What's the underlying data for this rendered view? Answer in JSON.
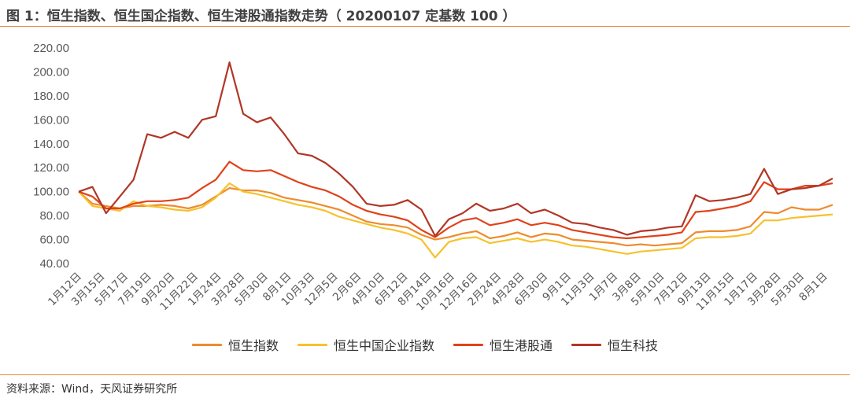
{
  "header": {
    "title": "图 1：恒生指数、恒生国企指数、恒生港股通指数走势（ 20200107 定基数 100 ）"
  },
  "footer": {
    "source": "资料来源：Wind，天风证券研究所"
  },
  "colors": {
    "rule": "#e58b3a",
    "hsi": "#ee8b2e",
    "hscei": "#f7c12c",
    "ggt": "#e0421a",
    "tech": "#b03726"
  },
  "chart_data": {
    "type": "line",
    "ylim": [
      40,
      220
    ],
    "yticks": [
      "220.00",
      "200.00",
      "180.00",
      "160.00",
      "140.00",
      "120.00",
      "100.00",
      "80.00",
      "60.00",
      "40.00"
    ],
    "ytick_values": [
      220,
      200,
      180,
      160,
      140,
      120,
      100,
      80,
      60,
      40
    ],
    "x_tick_labels": [
      "1月12日",
      "3月15日",
      "5月17日",
      "7月19日",
      "9月20日",
      "11月22日",
      "1月24日",
      "3月28日",
      "5月30日",
      "8月1日",
      "10月3日",
      "12月5日",
      "2月6日",
      "4月10日",
      "6月12日",
      "8月14日",
      "10月16日",
      "12月16日",
      "2月24日",
      "4月28日",
      "6月30日",
      "9月1日",
      "11月3日",
      "1月7日",
      "3月8日",
      "5月10日",
      "7月12日",
      "9月13日",
      "11月15日",
      "1月17日",
      "3月28日",
      "5月30日",
      "8月1日"
    ],
    "series": [
      {
        "name": "恒生指数",
        "color_key": "hsi",
        "values": [
          100,
          90,
          88,
          86,
          88,
          88,
          89,
          88,
          86,
          89,
          96,
          103,
          101,
          101,
          99,
          95,
          93,
          91,
          88,
          85,
          80,
          75,
          73,
          72,
          70,
          64,
          60,
          62,
          65,
          67,
          61,
          63,
          66,
          62,
          65,
          64,
          60,
          59,
          58,
          57,
          55,
          56,
          55,
          56,
          57,
          66,
          67,
          67,
          68,
          71,
          83,
          82,
          87,
          85,
          85,
          89
        ]
      },
      {
        "name": "恒生中国企业指数",
        "color_key": "hscei",
        "values": [
          100,
          88,
          86,
          84,
          92,
          88,
          87,
          85,
          84,
          87,
          95,
          107,
          100,
          98,
          95,
          92,
          89,
          87,
          84,
          79,
          76,
          73,
          70,
          68,
          65,
          60,
          45,
          58,
          61,
          62,
          57,
          59,
          61,
          58,
          60,
          58,
          55,
          54,
          52,
          50,
          48,
          50,
          51,
          52,
          53,
          61,
          62,
          62,
          63,
          65,
          76,
          76,
          78,
          79,
          80,
          81
        ]
      },
      {
        "name": "恒生港股通",
        "color_key": "ggt",
        "values": [
          100,
          96,
          86,
          86,
          90,
          92,
          92,
          93,
          95,
          103,
          110,
          125,
          118,
          117,
          118,
          113,
          108,
          104,
          101,
          96,
          89,
          84,
          81,
          79,
          76,
          68,
          62,
          70,
          76,
          78,
          72,
          74,
          77,
          72,
          74,
          72,
          68,
          66,
          64,
          62,
          61,
          62,
          63,
          64,
          66,
          83,
          84,
          86,
          88,
          92,
          108,
          102,
          102,
          105,
          105,
          107
        ]
      },
      {
        "name": "恒生科技",
        "color_key": "tech",
        "values": [
          100,
          104,
          82,
          96,
          110,
          148,
          145,
          150,
          145,
          160,
          163,
          208,
          165,
          158,
          162,
          148,
          132,
          130,
          124,
          115,
          104,
          90,
          88,
          89,
          93,
          85,
          63,
          77,
          82,
          90,
          84,
          86,
          90,
          82,
          85,
          80,
          74,
          73,
          70,
          68,
          64,
          67,
          68,
          70,
          71,
          97,
          92,
          93,
          95,
          98,
          119,
          98,
          102,
          103,
          105,
          111
        ]
      }
    ],
    "legend": "bottom"
  }
}
